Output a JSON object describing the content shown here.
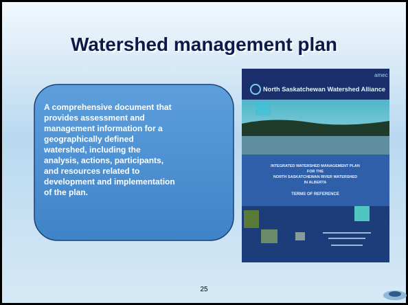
{
  "title": "Watershed management plan",
  "body": {
    "lines": [
      "A comprehensive document that",
      "provides assessment and",
      "management information for a",
      "geographically defined",
      "watershed, including the",
      "analysis, actions, participants,",
      "and resources related to",
      "development and implementation",
      "of the plan."
    ]
  },
  "cover": {
    "brand": "amec",
    "organization": "North Saskatchewan Watershed Alliance",
    "heading": [
      "INTEGRATED WATERSHED MANAGEMENT PLAN",
      "FOR THE",
      "NORTH SASKATCHEWAN RIVER WATERSHED",
      "IN ALBERTA"
    ],
    "subheading": "TERMS OF REFERENCE"
  },
  "page_number": "25"
}
